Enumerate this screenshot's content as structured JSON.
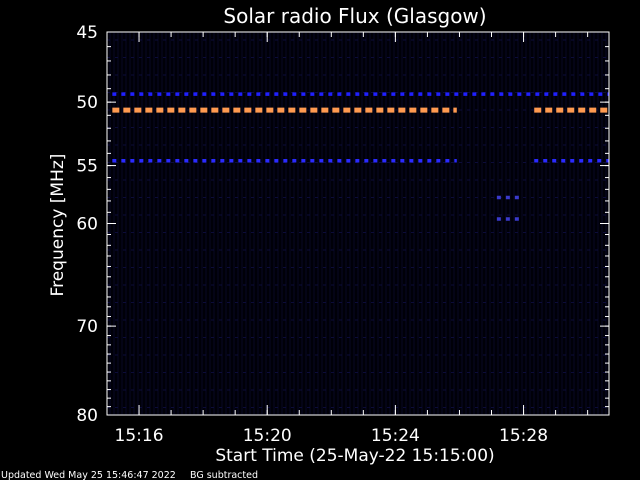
{
  "chart_data": {
    "type": "heatmap",
    "title": "Solar radio Flux (Glasgow)",
    "xlabel": "Start Time (25-May-22 15:15:00)",
    "ylabel": "Frequency [MHz]",
    "x_range": [
      "15:15:00",
      "15:30:40"
    ],
    "y_range": [
      45,
      80
    ],
    "y_scale": "log",
    "x_ticks": [
      "15:16",
      "15:20",
      "15:24",
      "15:28"
    ],
    "y_ticks": [
      45,
      50,
      55,
      60,
      70,
      80
    ],
    "background_color": "#000000",
    "emission_bands": [
      {
        "frequency_mhz": 49.4,
        "color": "#2020ff",
        "intensity": "low",
        "segments": [
          [
            "15:15:10",
            "15:30:40"
          ]
        ]
      },
      {
        "frequency_mhz": 50.6,
        "color": "#ff9a50",
        "intensity": "high",
        "segments": [
          [
            "15:15:10",
            "15:25:55"
          ],
          [
            "15:28:20",
            "15:30:40"
          ]
        ]
      },
      {
        "frequency_mhz": 54.6,
        "color": "#2a2aff",
        "intensity": "low",
        "segments": [
          [
            "15:15:10",
            "15:25:55"
          ],
          [
            "15:28:20",
            "15:30:40"
          ]
        ]
      },
      {
        "frequency_mhz": 57.7,
        "color": "#3a3acc",
        "intensity": "low",
        "segments": [
          [
            "15:27:10",
            "15:28:00"
          ]
        ]
      },
      {
        "frequency_mhz": 59.6,
        "color": "#3a3acc",
        "intensity": "low",
        "segments": [
          [
            "15:27:10",
            "15:28:00"
          ]
        ]
      }
    ]
  },
  "footer": {
    "updated": "Updated Wed May 25 15:46:47 2022",
    "note": "BG subtracted"
  }
}
